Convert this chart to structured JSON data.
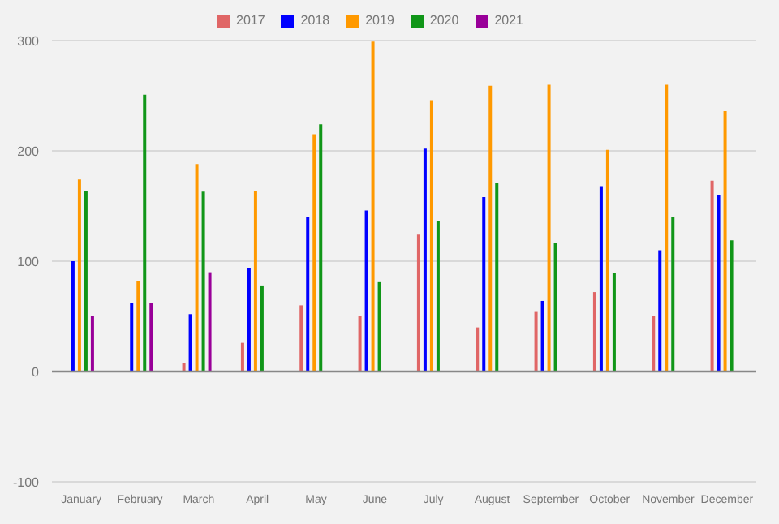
{
  "chart_data": {
    "type": "bar",
    "categories": [
      "January",
      "February",
      "March",
      "April",
      "May",
      "June",
      "July",
      "August",
      "September",
      "October",
      "November",
      "December"
    ],
    "series": [
      {
        "name": "2017",
        "color": "#e06666",
        "values": [
          null,
          null,
          8,
          26,
          60,
          50,
          124,
          40,
          54,
          72,
          50,
          173
        ]
      },
      {
        "name": "2018",
        "color": "#0000ff",
        "values": [
          100,
          62,
          52,
          94,
          140,
          146,
          202,
          158,
          64,
          168,
          110,
          160
        ]
      },
      {
        "name": "2019",
        "color": "#ff9900",
        "values": [
          174,
          82,
          188,
          164,
          215,
          299,
          246,
          259,
          260,
          201,
          260,
          236
        ]
      },
      {
        "name": "2020",
        "color": "#109618",
        "values": [
          164,
          251,
          163,
          78,
          224,
          81,
          136,
          171,
          117,
          89,
          140,
          119
        ]
      },
      {
        "name": "2021",
        "color": "#990099",
        "values": [
          50,
          62,
          90,
          null,
          null,
          null,
          null,
          null,
          null,
          null,
          null,
          null
        ]
      }
    ],
    "ylim": [
      -100,
      300
    ],
    "yticks": [
      -100,
      0,
      100,
      200,
      300
    ],
    "grid": "y",
    "legend": "top"
  }
}
